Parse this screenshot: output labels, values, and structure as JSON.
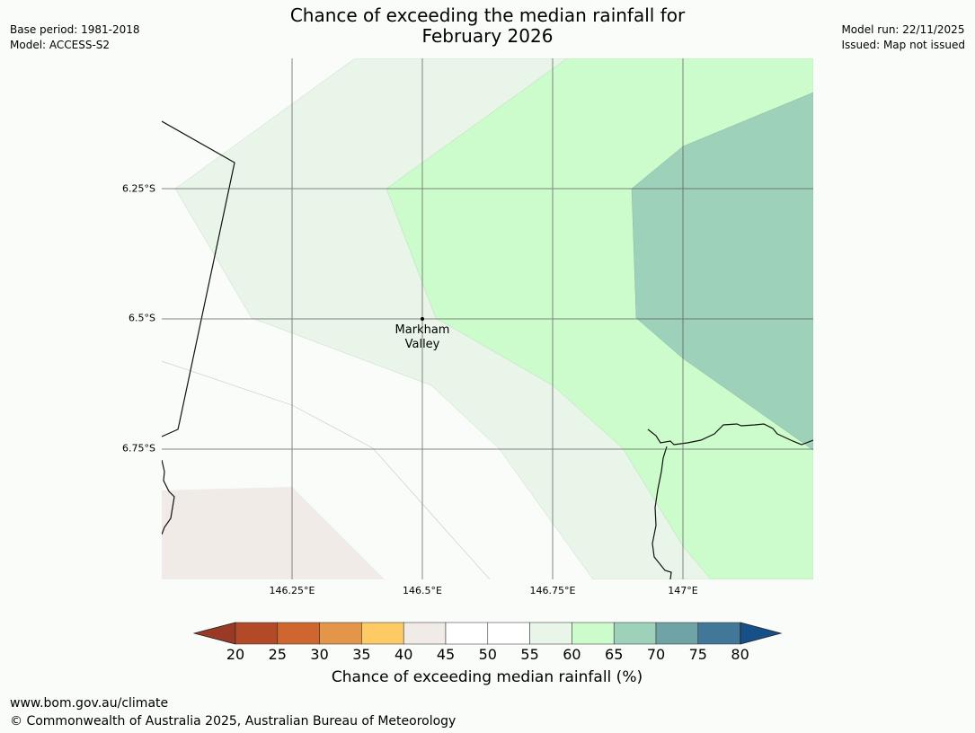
{
  "title": {
    "line1": "Chance of exceeding the median rainfall for",
    "line2": "February 2026"
  },
  "meta_left": {
    "base_period": "Base period: 1981-2018",
    "model": "Model: ACCESS-S2"
  },
  "meta_right": {
    "model_run": "Model run: 22/11/2025",
    "issued": "Issued: Map not issued"
  },
  "map": {
    "lat_labels": [
      "6.25°S",
      "6.5°S",
      "6.75°S"
    ],
    "lon_labels": [
      "146.25°E",
      "146.5°E",
      "146.75°E",
      "147°E"
    ],
    "lon_range": [
      146.0,
      147.25
    ],
    "lat_range": [
      -6.0,
      -7.0
    ],
    "place": {
      "name_line1": "Markham",
      "name_line2": "Valley",
      "lon": 146.5,
      "lat": -6.5
    },
    "region_colors": {
      "c40_45": "#f0ebe6",
      "c55_60": "#e9f5e8",
      "c60_65": "#ccfccb",
      "c65_70": "#9ed1b9"
    }
  },
  "colorbar": {
    "ticks": [
      "20",
      "25",
      "30",
      "35",
      "40",
      "45",
      "50",
      "55",
      "60",
      "65",
      "70",
      "75",
      "80"
    ],
    "low_color": "#9a3a26",
    "high_color": "#174f88",
    "colors": [
      "#b34a27",
      "#cf652f",
      "#e3954a",
      "#fdca65",
      "#f0ebe6",
      "#ffffff",
      "#ffffff",
      "#e9f5e8",
      "#ccfccb",
      "#9ed1b9",
      "#6fa3a6",
      "#417799"
    ],
    "label": "Chance of exceeding median rainfall (%)"
  },
  "footer": {
    "url": "www.bom.gov.au/climate",
    "copyright": "© Commonwealth of Australia 2025, Australian Bureau of Meteorology"
  }
}
